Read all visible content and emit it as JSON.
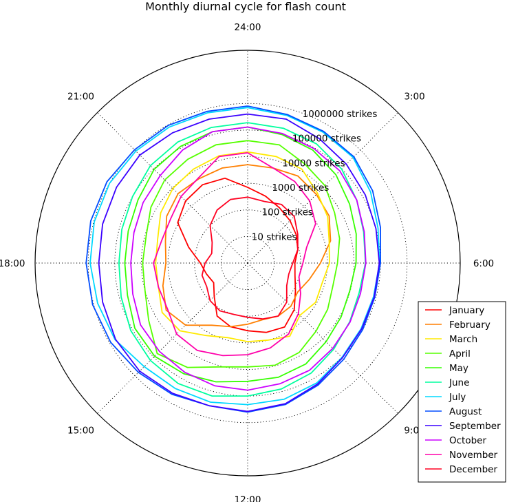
{
  "chart_data": {
    "type": "line",
    "projection": "polar",
    "title": "Monthly diurnal cycle for flash count",
    "theta_tick_labels": [
      "24:00",
      "3:00",
      "6:00",
      "9:00",
      "12:00",
      "15:00",
      "18:00",
      "21:00"
    ],
    "r_scale": "log",
    "r_tick_labels": [
      "10 strikes",
      "100 strikes",
      "1000 strikes",
      "10000 strikes",
      "100000 strikes",
      "1000000 strikes"
    ],
    "r_ticks": [
      10,
      100,
      1000,
      10000,
      100000,
      1000000
    ],
    "r_range": [
      1,
      100000000
    ],
    "grid": true,
    "legend_position": "lower-right",
    "x": [
      "0:00",
      "1:00",
      "2:00",
      "3:00",
      "4:00",
      "5:00",
      "6:00",
      "7:00",
      "8:00",
      "9:00",
      "10:00",
      "11:00",
      "12:00",
      "13:00",
      "14:00",
      "15:00",
      "16:00",
      "17:00",
      "18:00",
      "19:00",
      "20:00",
      "21:00",
      "22:00",
      "23:00"
    ],
    "series": [
      {
        "name": "January",
        "color": "#ff0000",
        "values": [
          700,
          400,
          250,
          180,
          130,
          90,
          60,
          70,
          120,
          300,
          600,
          500,
          350,
          300,
          200,
          60,
          30,
          40,
          60,
          200,
          1100,
          2000,
          2500,
          2000
        ]
      },
      {
        "name": "February",
        "color": "#ff7f00",
        "values": [
          5000,
          5000,
          6000,
          4500,
          3500,
          1700,
          550,
          250,
          150,
          200,
          200,
          160,
          200,
          300,
          500,
          2000,
          3500,
          2000,
          1200,
          1600,
          3300,
          5000,
          4600,
          5000
        ]
      },
      {
        "name": "March",
        "color": "#ffea00",
        "values": [
          15000,
          14000,
          12000,
          5200,
          3000,
          1500,
          1200,
          800,
          900,
          600,
          1500,
          1000,
          900,
          800,
          1400,
          4000,
          5200,
          3000,
          2900,
          3200,
          6000,
          9500,
          12000,
          15000
        ]
      },
      {
        "name": "April",
        "color": "#56ff00",
        "values": [
          40000,
          40000,
          20000,
          13000,
          6000,
          3800,
          2400,
          2100,
          3000,
          4300,
          7600,
          9500,
          8000,
          11000,
          34000,
          65000,
          20000,
          10000,
          9000,
          9000,
          16000,
          26000,
          32000,
          40000
        ]
      },
      {
        "name": "May",
        "color": "#35ff00",
        "values": [
          130000,
          100000,
          80000,
          50000,
          27000,
          17000,
          12000,
          9600,
          11500,
          15000,
          24000,
          28000,
          28000,
          42000,
          64000,
          90000,
          80000,
          48000,
          42000,
          45000,
          58000,
          95000,
          115000,
          130000
        ]
      },
      {
        "name": "June",
        "color": "#00ff9f",
        "values": [
          190000,
          175000,
          150000,
          100000,
          55000,
          33000,
          27000,
          22000,
          27000,
          38000,
          60000,
          80000,
          100000,
          150000,
          170000,
          150000,
          120000,
          85000,
          70000,
          80000,
          100000,
          150000,
          180000,
          190000
        ]
      },
      {
        "name": "July",
        "color": "#00d8ff",
        "values": [
          700000,
          550000,
          480000,
          410000,
          220000,
          120000,
          92000,
          80000,
          85000,
          105000,
          160000,
          200000,
          210000,
          260000,
          280000,
          320000,
          580000,
          700000,
          850000,
          950000,
          1000000,
          900000,
          800000,
          700000
        ]
      },
      {
        "name": "August",
        "color": "#004dff",
        "values": [
          800000,
          600000,
          520000,
          450000,
          270000,
          150000,
          100000,
          90000,
          100000,
          130000,
          200000,
          320000,
          400000,
          360000,
          500000,
          650000,
          900000,
          1100000,
          1200000,
          1300000,
          1300000,
          1050000,
          950000,
          800000
        ]
      },
      {
        "name": "September",
        "color": "#3a00ff",
        "values": [
          400000,
          400000,
          250000,
          180000,
          130000,
          100000,
          90000,
          85000,
          90000,
          110000,
          180000,
          300000,
          380000,
          360000,
          450000,
          560000,
          550000,
          450000,
          400000,
          450000,
          500000,
          550000,
          450000,
          400000
        ]
      },
      {
        "name": "October",
        "color": "#cc00ff",
        "values": [
          130000,
          110000,
          95000,
          80000,
          55000,
          35000,
          28000,
          25000,
          28000,
          34000,
          45000,
          50000,
          60000,
          60000,
          55000,
          50000,
          45000,
          30000,
          25000,
          27000,
          35000,
          45000,
          80000,
          130000
        ]
      },
      {
        "name": "November",
        "color": "#ff00aa",
        "values": [
          14000,
          5000,
          3500,
          2000,
          900,
          200,
          120,
          100,
          200,
          500,
          1200,
          2000,
          2800,
          4000,
          6200,
          6000,
          3000,
          3000,
          3500,
          2200,
          2200,
          3500,
          5000,
          14000
        ]
      },
      {
        "name": "December",
        "color": "#ff0020",
        "values": [
          300,
          250,
          350,
          300,
          150,
          90,
          50,
          40,
          50,
          120,
          200,
          150,
          110,
          100,
          120,
          100,
          60,
          60,
          40,
          25,
          35,
          100,
          200,
          300
        ]
      }
    ]
  }
}
